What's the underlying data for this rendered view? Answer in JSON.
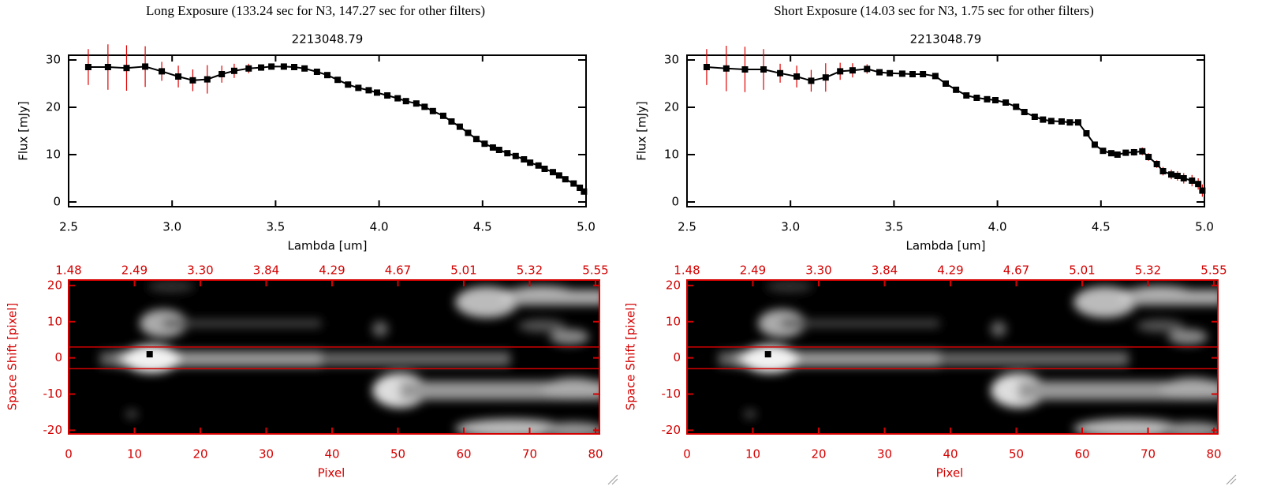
{
  "chart_data": [
    {
      "type": "line",
      "title": "Long Exposure (133.24 sec for N3, 147.27 sec for other filters)",
      "subtitle": "2213048.79",
      "xlabel": "Lambda [um]",
      "ylabel": "Flux [mJy]",
      "x": [
        2.595,
        2.69,
        2.78,
        2.87,
        2.95,
        3.03,
        3.1,
        3.17,
        3.24,
        3.3,
        3.37,
        3.43,
        3.48,
        3.54,
        3.59,
        3.64,
        3.7,
        3.75,
        3.8,
        3.85,
        3.9,
        3.95,
        3.99,
        4.04,
        4.09,
        4.13,
        4.18,
        4.22,
        4.26,
        4.31,
        4.35,
        4.39,
        4.43,
        4.47,
        4.51,
        4.55,
        4.58,
        4.62,
        4.66,
        4.7,
        4.73,
        4.77,
        4.8,
        4.84,
        4.87,
        4.9,
        4.94,
        4.97,
        4.99
      ],
      "values": [
        28.5,
        28.5,
        28.3,
        28.6,
        27.6,
        26.5,
        25.7,
        25.9,
        27.0,
        27.7,
        28.2,
        28.4,
        28.6,
        28.6,
        28.5,
        28.2,
        27.5,
        26.8,
        25.8,
        24.8,
        24.1,
        23.6,
        23.1,
        22.5,
        21.9,
        21.3,
        20.8,
        20.1,
        19.2,
        18.2,
        17.0,
        15.9,
        14.6,
        13.3,
        12.3,
        11.5,
        11.0,
        10.3,
        9.7,
        9.0,
        8.3,
        7.7,
        7.0,
        6.3,
        5.6,
        4.8,
        3.9,
        3.0,
        2.2
      ],
      "errors": [
        3.8,
        4.8,
        4.8,
        4.3,
        2.0,
        2.3,
        2.3,
        3.0,
        1.8,
        1.5,
        1.0,
        0.6,
        0.4,
        0.3,
        0.3,
        0.3,
        0.3,
        0.3,
        0.3,
        0.3,
        0.3,
        0.3,
        0.3,
        0.3,
        0.3,
        0.3,
        0.3,
        0.3,
        0.3,
        0.3,
        0.3,
        0.3,
        0.3,
        0.3,
        0.3,
        0.3,
        0.3,
        0.3,
        0.3,
        0.3,
        0.3,
        0.3,
        0.3,
        0.3,
        0.4,
        0.4,
        0.5,
        0.5,
        0.6
      ],
      "color": "#000000",
      "error_color": "#e00000",
      "xlim": [
        2.5,
        5.0
      ],
      "ylim": [
        -1,
        31
      ],
      "xticks": [
        2.5,
        {
          "value": 3,
          "label": "3.0"
        },
        3.5,
        {
          "value": 4,
          "label": "4.0"
        },
        4.5,
        {
          "value": 5,
          "label": "5.0"
        }
      ],
      "yticks": [
        0,
        10,
        20,
        30
      ]
    },
    {
      "type": "image",
      "xlabel": "Pixel",
      "ylabel": "Space Shift [pixel]",
      "color": "#d40000",
      "xlim": [
        0,
        80.6
      ],
      "ylim": [
        -21,
        21.5
      ],
      "xticks": [
        0,
        10,
        20,
        30,
        40,
        50,
        60,
        70,
        80
      ],
      "yticks": [
        -20,
        -10,
        0,
        10,
        20
      ],
      "x2ticks": [
        {
          "value": 0,
          "label": "1.48"
        },
        {
          "value": 10,
          "label": "2.49"
        },
        {
          "value": 20,
          "label": "3.30"
        },
        {
          "value": 30,
          "label": "3.84"
        },
        {
          "value": 40,
          "label": "4.29"
        },
        {
          "value": 50,
          "label": "4.67"
        },
        {
          "value": 60,
          "label": "5.01"
        },
        {
          "value": 70,
          "label": "5.32"
        },
        {
          "value": 80,
          "label": "5.55"
        }
      ],
      "hlines": [
        -3,
        3
      ],
      "marker": [
        12.3,
        1
      ]
    },
    {
      "type": "line",
      "title": "Short Exposure (14.03 sec for N3, 1.75 sec for other filters)",
      "subtitle": "2213048.79",
      "xlabel": "Lambda [um]",
      "ylabel": "Flux [mJy]",
      "x": [
        2.595,
        2.69,
        2.78,
        2.87,
        2.95,
        3.03,
        3.1,
        3.17,
        3.24,
        3.3,
        3.37,
        3.43,
        3.48,
        3.54,
        3.59,
        3.64,
        3.7,
        3.75,
        3.8,
        3.85,
        3.9,
        3.95,
        3.99,
        4.04,
        4.09,
        4.13,
        4.18,
        4.22,
        4.26,
        4.31,
        4.35,
        4.39,
        4.43,
        4.47,
        4.51,
        4.55,
        4.58,
        4.62,
        4.66,
        4.7,
        4.73,
        4.77,
        4.8,
        4.84,
        4.87,
        4.9,
        4.94,
        4.97,
        4.99
      ],
      "values": [
        28.5,
        28.2,
        28.0,
        28.0,
        27.2,
        26.5,
        25.6,
        26.3,
        27.6,
        27.8,
        28.1,
        27.4,
        27.2,
        27.1,
        27.0,
        27.0,
        26.6,
        25.0,
        23.7,
        22.5,
        22.0,
        21.7,
        21.5,
        21.0,
        20.1,
        19.0,
        18.0,
        17.4,
        17.1,
        17.0,
        16.8,
        16.8,
        14.5,
        12.1,
        10.8,
        10.3,
        10.0,
        10.4,
        10.5,
        10.7,
        9.5,
        8.0,
        6.5,
        5.8,
        5.5,
        5.0,
        4.5,
        3.8,
        2.4
      ],
      "errors": [
        3.8,
        4.8,
        4.8,
        4.3,
        2.0,
        2.3,
        2.3,
        3.0,
        1.8,
        1.5,
        1.0,
        0.6,
        0.4,
        0.3,
        0.3,
        0.3,
        0.3,
        0.3,
        0.3,
        0.3,
        0.3,
        0.3,
        0.3,
        0.3,
        0.3,
        0.3,
        0.3,
        0.3,
        0.3,
        0.3,
        0.3,
        0.4,
        0.5,
        0.5,
        0.6,
        0.6,
        0.6,
        0.6,
        0.7,
        0.8,
        0.8,
        0.8,
        0.9,
        1.0,
        1.0,
        1.1,
        1.2,
        1.2,
        1.3
      ],
      "color": "#000000",
      "error_color": "#e00000",
      "xlim": [
        2.5,
        5.0
      ],
      "ylim": [
        -1,
        31
      ],
      "xticks": [
        2.5,
        {
          "value": 3,
          "label": "3.0"
        },
        3.5,
        {
          "value": 4,
          "label": "4.0"
        },
        4.5,
        {
          "value": 5,
          "label": "5.0"
        }
      ],
      "yticks": [
        0,
        10,
        20,
        30
      ]
    },
    {
      "type": "image",
      "xlabel": "Pixel",
      "ylabel": "Space Shift [pixel]",
      "color": "#d40000",
      "xlim": [
        0,
        80.6
      ],
      "ylim": [
        -21,
        21.5
      ],
      "xticks": [
        0,
        10,
        20,
        30,
        40,
        50,
        60,
        70,
        80
      ],
      "yticks": [
        -20,
        -10,
        0,
        10,
        20
      ],
      "x2ticks": [
        {
          "value": 0,
          "label": "1.48"
        },
        {
          "value": 10,
          "label": "2.49"
        },
        {
          "value": 20,
          "label": "3.30"
        },
        {
          "value": 30,
          "label": "3.84"
        },
        {
          "value": 40,
          "label": "4.29"
        },
        {
          "value": 50,
          "label": "4.67"
        },
        {
          "value": 60,
          "label": "5.01"
        },
        {
          "value": 70,
          "label": "5.32"
        },
        {
          "value": 80,
          "label": "5.55"
        }
      ],
      "hlines": [
        -3,
        3
      ],
      "marker": [
        12.3,
        1
      ]
    }
  ]
}
